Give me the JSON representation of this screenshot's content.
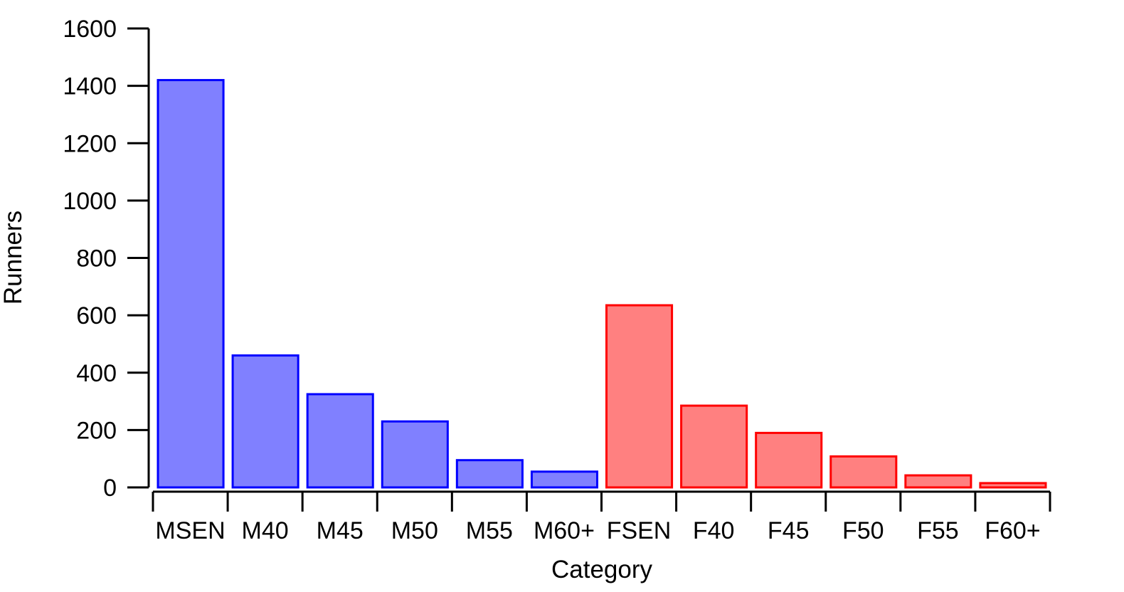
{
  "chart_data": {
    "type": "bar",
    "title": "",
    "xlabel": "Category",
    "ylabel": "Runners",
    "ylim": [
      0,
      1600
    ],
    "yticks": [
      0,
      200,
      400,
      600,
      800,
      1000,
      1200,
      1400,
      1600
    ],
    "categories": [
      "MSEN",
      "M40",
      "M45",
      "M50",
      "M55",
      "M60+",
      "FSEN",
      "F40",
      "F45",
      "F50",
      "F55",
      "F60+"
    ],
    "values": [
      1420,
      460,
      325,
      230,
      95,
      55,
      635,
      285,
      190,
      108,
      42,
      15
    ],
    "groups": [
      "male",
      "male",
      "male",
      "male",
      "male",
      "male",
      "female",
      "female",
      "female",
      "female",
      "female",
      "female"
    ],
    "group_colors": {
      "male": {
        "fill": "#8080ff",
        "stroke": "#0000ff"
      },
      "female": {
        "fill": "#ff8080",
        "stroke": "#ff0000"
      }
    },
    "grid": false,
    "legend": "none"
  }
}
